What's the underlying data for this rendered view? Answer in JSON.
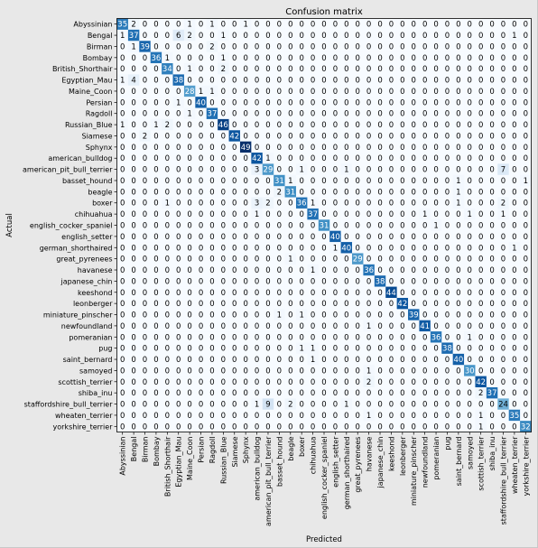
{
  "chart_data": {
    "type": "heatmap",
    "title": "Confusion matrix",
    "xlabel": "Predicted",
    "ylabel": "Actual",
    "colormap": "Blues",
    "vmin": 0,
    "vmax": 49,
    "categories": [
      "Abyssinian",
      "Bengal",
      "Birman",
      "Bombay",
      "British_Shorthair",
      "Egyptian_Mau",
      "Maine_Coon",
      "Persian",
      "Ragdoll",
      "Russian_Blue",
      "Siamese",
      "Sphynx",
      "american_bulldog",
      "american_pit_bull_terrier",
      "basset_hound",
      "beagle",
      "boxer",
      "chihuahua",
      "english_cocker_spaniel",
      "english_setter",
      "german_shorthaired",
      "great_pyrenees",
      "havanese",
      "japanese_chin",
      "keeshond",
      "leonberger",
      "miniature_pinscher",
      "newfoundland",
      "pomeranian",
      "pug",
      "saint_bernard",
      "samoyed",
      "scottish_terrier",
      "shiba_inu",
      "staffordshire_bull_terrier",
      "wheaten_terrier",
      "yorkshire_terrier"
    ],
    "matrix": [
      [
        35,
        2,
        0,
        0,
        0,
        0,
        1,
        0,
        1,
        0,
        0,
        1,
        0,
        0,
        0,
        0,
        0,
        0,
        0,
        0,
        0,
        0,
        0,
        0,
        0,
        0,
        0,
        0,
        0,
        0,
        0,
        0,
        0,
        0,
        0,
        0,
        0
      ],
      [
        1,
        37,
        0,
        0,
        0,
        6,
        2,
        0,
        0,
        1,
        0,
        0,
        0,
        0,
        0,
        0,
        0,
        0,
        0,
        0,
        0,
        0,
        0,
        0,
        0,
        0,
        0,
        0,
        0,
        0,
        0,
        0,
        0,
        0,
        0,
        1,
        0
      ],
      [
        0,
        1,
        39,
        0,
        0,
        0,
        0,
        0,
        2,
        0,
        0,
        0,
        0,
        0,
        0,
        0,
        0,
        0,
        0,
        0,
        0,
        0,
        0,
        0,
        0,
        0,
        0,
        0,
        0,
        0,
        0,
        0,
        0,
        0,
        0,
        0,
        0
      ],
      [
        0,
        0,
        0,
        36,
        1,
        0,
        0,
        0,
        0,
        1,
        0,
        0,
        0,
        0,
        0,
        0,
        0,
        0,
        0,
        0,
        0,
        0,
        0,
        0,
        0,
        0,
        0,
        0,
        0,
        0,
        0,
        0,
        0,
        0,
        0,
        0,
        0
      ],
      [
        0,
        0,
        0,
        0,
        34,
        0,
        1,
        0,
        0,
        2,
        0,
        0,
        0,
        0,
        0,
        0,
        0,
        0,
        0,
        0,
        0,
        0,
        0,
        0,
        0,
        0,
        0,
        0,
        0,
        0,
        0,
        0,
        0,
        0,
        0,
        0,
        0
      ],
      [
        1,
        4,
        0,
        0,
        0,
        38,
        0,
        0,
        0,
        0,
        0,
        0,
        0,
        0,
        0,
        0,
        0,
        0,
        0,
        0,
        0,
        0,
        0,
        0,
        0,
        0,
        0,
        0,
        0,
        0,
        0,
        0,
        0,
        0,
        0,
        0,
        0
      ],
      [
        0,
        0,
        0,
        0,
        0,
        0,
        28,
        1,
        1,
        0,
        0,
        0,
        0,
        0,
        0,
        0,
        0,
        0,
        0,
        0,
        0,
        0,
        0,
        0,
        0,
        0,
        0,
        0,
        0,
        0,
        0,
        0,
        0,
        0,
        0,
        0,
        0
      ],
      [
        0,
        0,
        0,
        0,
        0,
        1,
        0,
        40,
        0,
        0,
        0,
        0,
        0,
        0,
        0,
        0,
        0,
        0,
        0,
        0,
        0,
        0,
        0,
        0,
        0,
        0,
        0,
        0,
        0,
        0,
        0,
        0,
        0,
        0,
        0,
        0,
        0
      ],
      [
        0,
        0,
        0,
        0,
        0,
        0,
        1,
        0,
        37,
        0,
        0,
        0,
        0,
        0,
        0,
        0,
        0,
        0,
        0,
        0,
        0,
        0,
        0,
        0,
        0,
        0,
        0,
        0,
        0,
        0,
        0,
        0,
        0,
        0,
        0,
        0,
        0
      ],
      [
        1,
        0,
        0,
        1,
        2,
        0,
        0,
        0,
        0,
        46,
        0,
        0,
        0,
        0,
        0,
        0,
        0,
        0,
        0,
        0,
        0,
        0,
        0,
        0,
        0,
        0,
        0,
        0,
        0,
        0,
        0,
        0,
        0,
        0,
        0,
        0,
        0
      ],
      [
        0,
        0,
        2,
        0,
        0,
        0,
        0,
        0,
        0,
        0,
        42,
        0,
        0,
        0,
        0,
        0,
        0,
        0,
        0,
        0,
        0,
        0,
        0,
        0,
        0,
        0,
        0,
        0,
        0,
        0,
        0,
        0,
        0,
        0,
        0,
        0,
        0
      ],
      [
        0,
        0,
        0,
        0,
        0,
        0,
        0,
        0,
        0,
        0,
        0,
        49,
        0,
        0,
        0,
        0,
        0,
        0,
        0,
        0,
        0,
        0,
        0,
        0,
        0,
        0,
        0,
        0,
        0,
        0,
        0,
        0,
        0,
        0,
        0,
        0,
        0
      ],
      [
        0,
        0,
        0,
        0,
        0,
        0,
        0,
        0,
        0,
        0,
        0,
        0,
        42,
        1,
        0,
        0,
        0,
        0,
        0,
        0,
        0,
        0,
        0,
        0,
        0,
        0,
        0,
        0,
        0,
        0,
        0,
        0,
        0,
        0,
        0,
        0,
        0
      ],
      [
        0,
        0,
        0,
        0,
        0,
        0,
        0,
        0,
        0,
        0,
        0,
        0,
        3,
        29,
        0,
        0,
        1,
        0,
        0,
        0,
        1,
        0,
        0,
        0,
        0,
        0,
        0,
        0,
        0,
        0,
        0,
        0,
        0,
        0,
        7,
        0,
        0
      ],
      [
        0,
        0,
        0,
        0,
        0,
        0,
        0,
        0,
        0,
        0,
        0,
        0,
        0,
        0,
        31,
        1,
        0,
        0,
        0,
        0,
        0,
        0,
        0,
        0,
        0,
        0,
        0,
        0,
        0,
        0,
        1,
        0,
        0,
        0,
        0,
        0,
        1
      ],
      [
        0,
        0,
        0,
        0,
        0,
        0,
        0,
        0,
        0,
        0,
        0,
        0,
        0,
        0,
        2,
        31,
        0,
        0,
        0,
        0,
        0,
        0,
        0,
        0,
        0,
        0,
        0,
        0,
        0,
        0,
        1,
        0,
        0,
        0,
        0,
        0,
        0
      ],
      [
        0,
        0,
        0,
        0,
        1,
        0,
        0,
        0,
        0,
        0,
        0,
        0,
        3,
        2,
        0,
        0,
        36,
        1,
        0,
        0,
        0,
        0,
        0,
        0,
        0,
        0,
        0,
        0,
        0,
        0,
        1,
        0,
        0,
        0,
        2,
        0,
        0
      ],
      [
        0,
        0,
        0,
        0,
        0,
        0,
        0,
        0,
        0,
        0,
        0,
        0,
        1,
        0,
        0,
        0,
        0,
        37,
        0,
        0,
        0,
        0,
        0,
        0,
        0,
        0,
        0,
        1,
        0,
        0,
        0,
        1,
        0,
        0,
        1,
        0,
        0
      ],
      [
        0,
        0,
        0,
        0,
        0,
        0,
        0,
        0,
        0,
        0,
        0,
        0,
        0,
        0,
        0,
        0,
        0,
        0,
        31,
        0,
        0,
        0,
        0,
        0,
        0,
        0,
        0,
        0,
        1,
        0,
        0,
        0,
        0,
        0,
        0,
        0,
        0
      ],
      [
        0,
        0,
        0,
        0,
        0,
        0,
        0,
        0,
        0,
        0,
        0,
        0,
        0,
        0,
        0,
        0,
        0,
        0,
        0,
        40,
        0,
        0,
        0,
        0,
        0,
        0,
        0,
        0,
        0,
        0,
        0,
        0,
        0,
        0,
        0,
        0,
        0
      ],
      [
        0,
        0,
        0,
        0,
        0,
        0,
        0,
        0,
        0,
        0,
        0,
        0,
        0,
        0,
        0,
        0,
        0,
        0,
        0,
        1,
        40,
        0,
        0,
        0,
        0,
        0,
        0,
        0,
        0,
        0,
        0,
        0,
        0,
        0,
        0,
        1,
        0
      ],
      [
        0,
        0,
        0,
        0,
        0,
        0,
        0,
        0,
        0,
        0,
        0,
        0,
        0,
        0,
        0,
        1,
        0,
        0,
        0,
        0,
        0,
        29,
        0,
        0,
        0,
        0,
        0,
        0,
        0,
        0,
        0,
        0,
        0,
        0,
        0,
        0,
        0
      ],
      [
        0,
        0,
        0,
        0,
        0,
        0,
        0,
        0,
        0,
        0,
        0,
        0,
        0,
        0,
        0,
        0,
        0,
        1,
        0,
        0,
        0,
        0,
        36,
        0,
        0,
        0,
        0,
        0,
        0,
        0,
        0,
        0,
        0,
        0,
        0,
        0,
        0
      ],
      [
        0,
        0,
        0,
        0,
        0,
        0,
        0,
        0,
        0,
        0,
        0,
        0,
        0,
        0,
        0,
        0,
        0,
        0,
        0,
        0,
        0,
        0,
        0,
        38,
        0,
        0,
        0,
        0,
        0,
        0,
        0,
        0,
        0,
        0,
        0,
        0,
        0
      ],
      [
        0,
        0,
        0,
        0,
        0,
        0,
        0,
        0,
        0,
        0,
        0,
        0,
        0,
        0,
        0,
        0,
        0,
        0,
        0,
        0,
        0,
        0,
        0,
        0,
        44,
        0,
        0,
        0,
        0,
        0,
        0,
        0,
        0,
        0,
        0,
        0,
        0
      ],
      [
        0,
        0,
        0,
        0,
        0,
        0,
        0,
        0,
        0,
        0,
        0,
        0,
        0,
        0,
        0,
        0,
        0,
        0,
        0,
        0,
        0,
        0,
        0,
        0,
        0,
        42,
        0,
        0,
        0,
        0,
        0,
        0,
        0,
        0,
        0,
        0,
        0
      ],
      [
        0,
        0,
        0,
        0,
        0,
        0,
        0,
        0,
        0,
        0,
        0,
        0,
        0,
        0,
        1,
        0,
        1,
        0,
        0,
        0,
        0,
        0,
        0,
        0,
        0,
        0,
        39,
        0,
        0,
        0,
        0,
        0,
        0,
        0,
        0,
        0,
        0
      ],
      [
        0,
        0,
        0,
        0,
        0,
        0,
        0,
        0,
        0,
        0,
        0,
        0,
        0,
        0,
        0,
        0,
        0,
        0,
        0,
        0,
        0,
        0,
        1,
        0,
        0,
        0,
        0,
        41,
        0,
        0,
        0,
        0,
        0,
        0,
        0,
        0,
        0
      ],
      [
        0,
        0,
        0,
        0,
        0,
        0,
        0,
        0,
        0,
        0,
        0,
        0,
        0,
        0,
        0,
        0,
        0,
        0,
        0,
        0,
        0,
        0,
        0,
        0,
        0,
        0,
        0,
        0,
        36,
        0,
        0,
        1,
        0,
        0,
        0,
        0,
        0
      ],
      [
        0,
        0,
        0,
        0,
        0,
        0,
        0,
        0,
        0,
        0,
        0,
        0,
        0,
        0,
        0,
        0,
        1,
        1,
        0,
        0,
        0,
        0,
        0,
        0,
        0,
        0,
        0,
        0,
        0,
        38,
        0,
        0,
        0,
        0,
        0,
        0,
        0
      ],
      [
        0,
        0,
        0,
        0,
        0,
        0,
        0,
        0,
        0,
        0,
        0,
        0,
        0,
        0,
        0,
        0,
        0,
        1,
        0,
        0,
        0,
        0,
        0,
        0,
        0,
        0,
        0,
        0,
        0,
        0,
        40,
        0,
        0,
        0,
        0,
        0,
        0
      ],
      [
        0,
        0,
        0,
        0,
        0,
        0,
        0,
        0,
        0,
        0,
        0,
        0,
        0,
        0,
        0,
        0,
        0,
        0,
        0,
        0,
        0,
        0,
        1,
        0,
        0,
        0,
        0,
        0,
        0,
        0,
        0,
        30,
        0,
        0,
        0,
        0,
        0
      ],
      [
        0,
        0,
        0,
        0,
        0,
        0,
        0,
        0,
        0,
        0,
        0,
        0,
        0,
        0,
        0,
        0,
        0,
        0,
        0,
        0,
        0,
        0,
        2,
        0,
        0,
        0,
        0,
        0,
        0,
        0,
        0,
        0,
        42,
        0,
        0,
        0,
        0
      ],
      [
        0,
        0,
        0,
        0,
        0,
        0,
        0,
        0,
        0,
        0,
        0,
        0,
        0,
        0,
        0,
        0,
        0,
        0,
        0,
        0,
        0,
        0,
        0,
        0,
        0,
        0,
        0,
        0,
        0,
        0,
        0,
        0,
        2,
        37,
        0,
        0,
        0
      ],
      [
        0,
        0,
        0,
        0,
        0,
        0,
        0,
        0,
        0,
        0,
        0,
        0,
        1,
        9,
        0,
        2,
        0,
        0,
        0,
        0,
        1,
        0,
        0,
        0,
        0,
        0,
        0,
        0,
        0,
        0,
        0,
        0,
        0,
        0,
        24,
        0,
        0
      ],
      [
        0,
        0,
        0,
        0,
        0,
        0,
        0,
        0,
        0,
        0,
        0,
        0,
        0,
        0,
        0,
        0,
        0,
        0,
        0,
        0,
        0,
        0,
        1,
        0,
        0,
        0,
        0,
        0,
        0,
        0,
        0,
        0,
        1,
        0,
        0,
        35,
        0
      ],
      [
        0,
        0,
        0,
        0,
        0,
        0,
        0,
        0,
        0,
        0,
        0,
        0,
        0,
        0,
        0,
        0,
        0,
        0,
        0,
        0,
        0,
        0,
        0,
        0,
        0,
        0,
        0,
        0,
        0,
        0,
        0,
        0,
        1,
        0,
        0,
        0,
        32
      ]
    ]
  }
}
